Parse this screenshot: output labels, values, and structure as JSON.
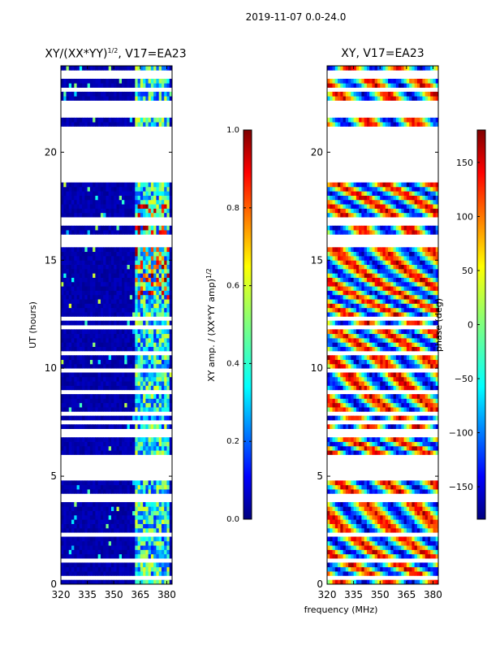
{
  "figure_title": "2019-11-07 0.0-24.0",
  "chart_data": [
    {
      "type": "heatmap",
      "title": "XY/(XX*YY)^1/2, V17=EA23",
      "title_main": "XY/(XX*YY)",
      "title_sup": "1/2",
      "title_tail": ", V17=EA23",
      "xlabel": "",
      "ylabel": "UT (hours)",
      "xlim": [
        320,
        383
      ],
      "ylim": [
        0,
        24
      ],
      "xticks": [
        320,
        335,
        350,
        365,
        380
      ],
      "yticks": [
        0,
        5,
        10,
        15,
        20
      ],
      "colorbar": {
        "label": "XY amp. / (XX*YY amp)",
        "label_sup": "1/2",
        "range": [
          0.0,
          1.0
        ],
        "ticks": [
          "0.0",
          "0.2",
          "0.4",
          "0.6",
          "0.8",
          "1.0"
        ],
        "colormap": "jet"
      },
      "gaps_hours": [
        [
          18.6,
          21.0
        ],
        [
          4.9,
          5.9
        ],
        [
          6.8,
          7.2
        ]
      ],
      "active_band_mhz": [
        361,
        380
      ]
    },
    {
      "type": "heatmap",
      "title": "XY, V17=EA23",
      "xlabel": "frequency (MHz)",
      "ylabel": "",
      "xlim": [
        320,
        383
      ],
      "ylim": [
        0,
        24
      ],
      "xticks": [
        320,
        335,
        350,
        365,
        380
      ],
      "yticks": [
        0,
        5,
        10,
        15,
        20
      ],
      "colorbar": {
        "label": "phase (deg)",
        "range": [
          -180,
          180
        ],
        "ticks": [
          "150",
          "100",
          "50",
          "0",
          "−50",
          "−100",
          "−150"
        ],
        "tick_values": [
          150,
          100,
          50,
          0,
          -50,
          -100,
          -150
        ],
        "colormap": "jet"
      },
      "gaps_hours": [
        [
          18.6,
          21.0
        ],
        [
          4.9,
          5.9
        ],
        [
          6.8,
          7.2
        ]
      ]
    }
  ]
}
